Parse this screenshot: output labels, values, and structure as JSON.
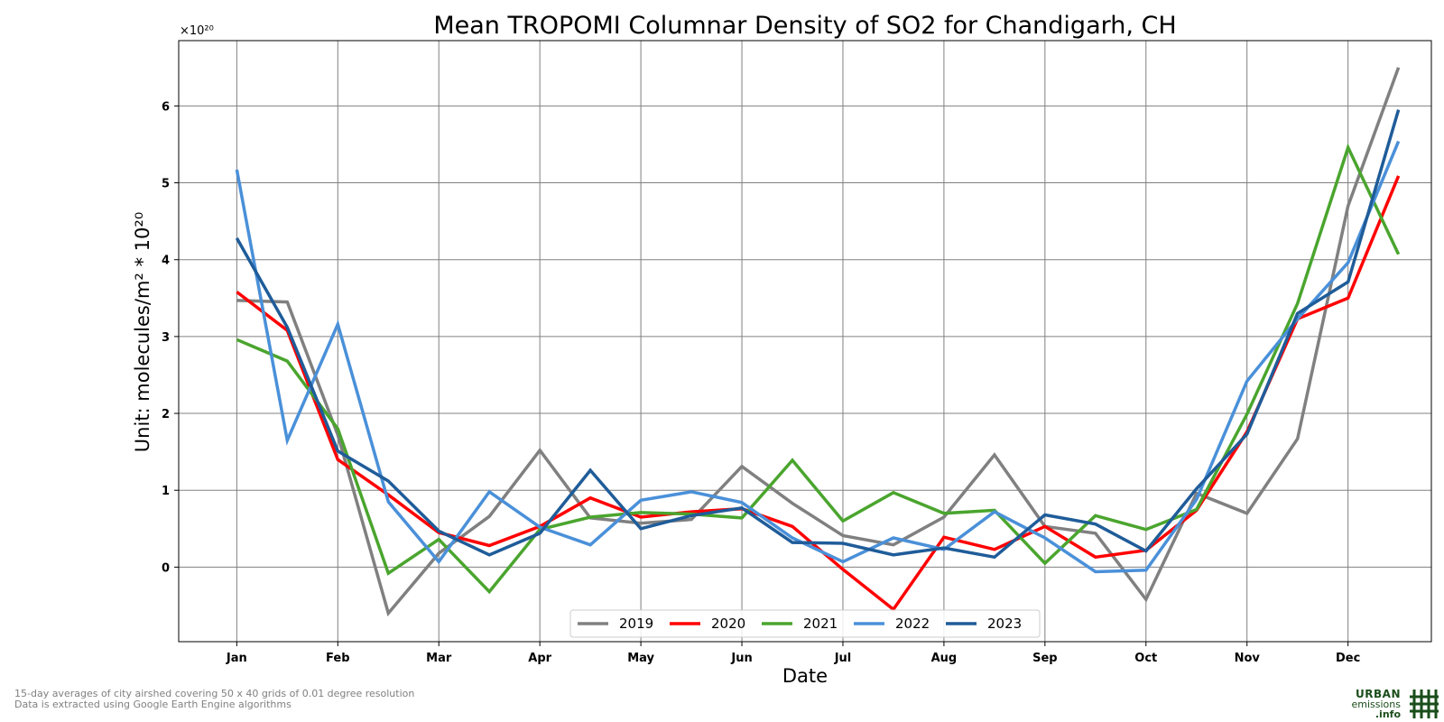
{
  "chart_data": {
    "type": "line",
    "title": "Mean TROPOMI Columnar Density of SO2 for Chandigarh, CH",
    "xlabel": "Date",
    "ylabel": "Unit: molecules/m² * 10²⁰",
    "y_multiplier": "×10²⁰",
    "x_tick_labels": [
      "Jan",
      "Feb",
      "Mar",
      "Apr",
      "May",
      "Jun",
      "Jul",
      "Aug",
      "Sep",
      "Oct",
      "Nov",
      "Dec"
    ],
    "x_tick_positions": [
      0,
      2,
      4,
      6,
      8,
      10,
      12,
      14,
      16,
      18,
      20,
      22
    ],
    "x": [
      0,
      1,
      2,
      3,
      4,
      5,
      6,
      7,
      8,
      9,
      10,
      11,
      12,
      13,
      14,
      15,
      16,
      17,
      18,
      19,
      20,
      21,
      22,
      23
    ],
    "xlim": [
      -1.15,
      23.65
    ],
    "y_ticks": [
      0,
      1,
      2,
      3,
      4,
      5,
      6
    ],
    "ylim": [
      -0.97,
      6.85
    ],
    "grid": true,
    "legend_position": "lower center",
    "series": [
      {
        "name": "2019",
        "color": "#808080",
        "values": [
          3.47,
          3.45,
          1.72,
          -0.6,
          0.18,
          0.66,
          1.52,
          0.64,
          0.57,
          0.62,
          1.31,
          0.83,
          0.41,
          0.29,
          0.65,
          1.46,
          0.53,
          0.44,
          -0.42,
          0.96,
          0.7,
          1.67,
          4.7,
          6.5
        ]
      },
      {
        "name": "2020",
        "color": "#ff0000",
        "values": [
          3.58,
          3.08,
          1.4,
          0.94,
          0.45,
          0.28,
          0.53,
          0.9,
          0.65,
          0.72,
          0.76,
          0.53,
          -0.03,
          -0.55,
          0.39,
          0.23,
          0.53,
          0.13,
          0.22,
          0.74,
          1.76,
          3.23,
          3.5,
          5.09
        ]
      },
      {
        "name": "2021",
        "color": "#4aa52e",
        "values": [
          2.96,
          2.68,
          1.8,
          -0.08,
          0.36,
          -0.32,
          0.49,
          0.65,
          0.71,
          0.69,
          0.64,
          1.39,
          0.6,
          0.97,
          0.7,
          0.74,
          0.05,
          0.67,
          0.49,
          0.75,
          1.99,
          3.43,
          5.46,
          4.07
        ]
      },
      {
        "name": "2022",
        "color": "#4a90d9",
        "values": [
          5.17,
          1.65,
          3.16,
          0.85,
          0.07,
          0.98,
          0.52,
          0.29,
          0.87,
          0.98,
          0.84,
          0.38,
          0.07,
          0.38,
          0.23,
          0.72,
          0.38,
          -0.06,
          -0.04,
          0.88,
          2.42,
          3.23,
          3.96,
          5.54
        ]
      },
      {
        "name": "2023",
        "color": "#1f5c99",
        "values": [
          4.28,
          3.12,
          1.51,
          1.12,
          0.47,
          0.16,
          0.44,
          1.26,
          0.5,
          0.67,
          0.77,
          0.32,
          0.31,
          0.16,
          0.25,
          0.13,
          0.68,
          0.56,
          0.21,
          1.02,
          1.73,
          3.3,
          3.71,
          5.95
        ]
      }
    ]
  },
  "footnote": {
    "line1": "15-day averages of city airshed covering 50 x 40 grids of 0.01 degree resolution",
    "line2": "Data is extracted using Google Earth Engine algorithms"
  },
  "logo": {
    "line1": "URBAN",
    "line2": "emissions",
    "line3": ".info"
  }
}
